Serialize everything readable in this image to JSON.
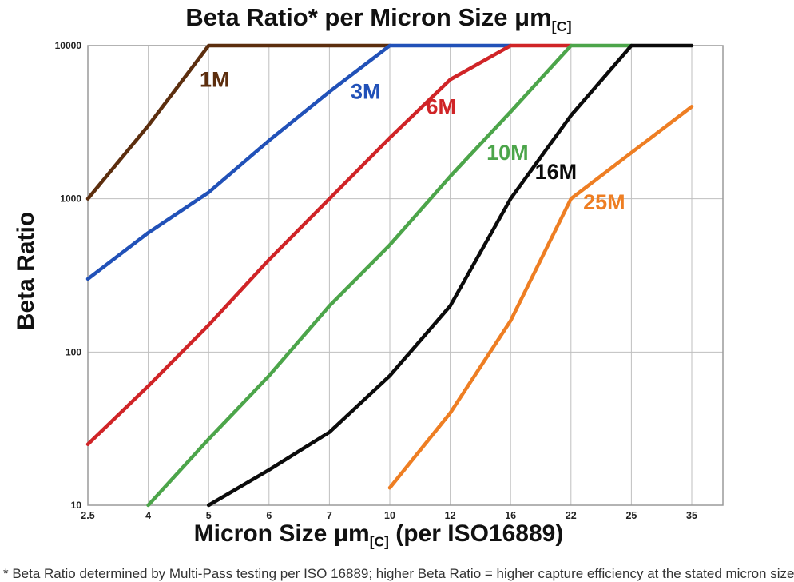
{
  "title": {
    "main": "Beta Ratio* per Micron Size μm",
    "sub": "[C]"
  },
  "y_axis": {
    "label": "Beta Ratio",
    "ticks": [
      "10",
      "100",
      "1000",
      "10000"
    ]
  },
  "x_axis": {
    "label_prefix": "Micron Size μm",
    "label_sub": "[C]",
    "label_suffix": " (per ISO16889)",
    "ticks": [
      "2.5",
      "4",
      "5",
      "6",
      "7",
      "10",
      "12",
      "16",
      "22",
      "25",
      "35"
    ]
  },
  "footnote": "* Beta Ratio determined by Multi-Pass testing per ISO 16889; higher Beta Ratio = higher capture efficiency at the stated micron size",
  "chart_data": {
    "type": "line",
    "title": "Beta Ratio* per Micron Size μm[C]",
    "xlabel": "Micron Size μm[C] (per ISO16889)",
    "ylabel": "Beta Ratio",
    "x_scale": "categorical",
    "y_scale": "log",
    "ylim": [
      10,
      10000
    ],
    "grid": true,
    "legend_position": "inline-labels",
    "categories": [
      2.5,
      4,
      5,
      6,
      7,
      10,
      12,
      16,
      22,
      25,
      35
    ],
    "y_ticks": [
      10,
      100,
      1000,
      10000
    ],
    "series": [
      {
        "name": "1M",
        "color": "#5C2E0E",
        "values": [
          1000,
          3000,
          10000,
          10000,
          10000,
          10000,
          null,
          null,
          null,
          null,
          null
        ],
        "label": {
          "xi": 2.1,
          "y": 6000
        }
      },
      {
        "name": "3M",
        "color": "#2151B8",
        "values": [
          300,
          600,
          1100,
          2400,
          5000,
          10000,
          10000,
          10000,
          null,
          null,
          null
        ],
        "label": {
          "xi": 4.6,
          "y": 5000
        }
      },
      {
        "name": "6M",
        "color": "#D02427",
        "values": [
          25,
          60,
          150,
          400,
          1000,
          2500,
          6000,
          10000,
          10000,
          null,
          null
        ],
        "label": {
          "xi": 5.85,
          "y": 4000
        }
      },
      {
        "name": "10M",
        "color": "#4CA54A",
        "values": [
          null,
          10,
          27,
          70,
          200,
          500,
          1400,
          3700,
          10000,
          10000,
          null
        ],
        "label": {
          "xi": 6.95,
          "y": 2000
        }
      },
      {
        "name": "16M",
        "color": "#0B0B0B",
        "values": [
          null,
          null,
          10,
          17,
          30,
          70,
          200,
          1000,
          3500,
          10000,
          10000
        ],
        "label": {
          "xi": 7.75,
          "y": 1500
        }
      },
      {
        "name": "25M",
        "color": "#EE7E23",
        "values": [
          null,
          null,
          null,
          null,
          null,
          13,
          40,
          160,
          1000,
          2000,
          4000
        ],
        "label": {
          "xi": 8.55,
          "y": 950
        }
      }
    ],
    "plot_style": {
      "grid_color": "#BFBFBF",
      "border_color": "#9A9A9A",
      "line_width": 4.5
    }
  }
}
